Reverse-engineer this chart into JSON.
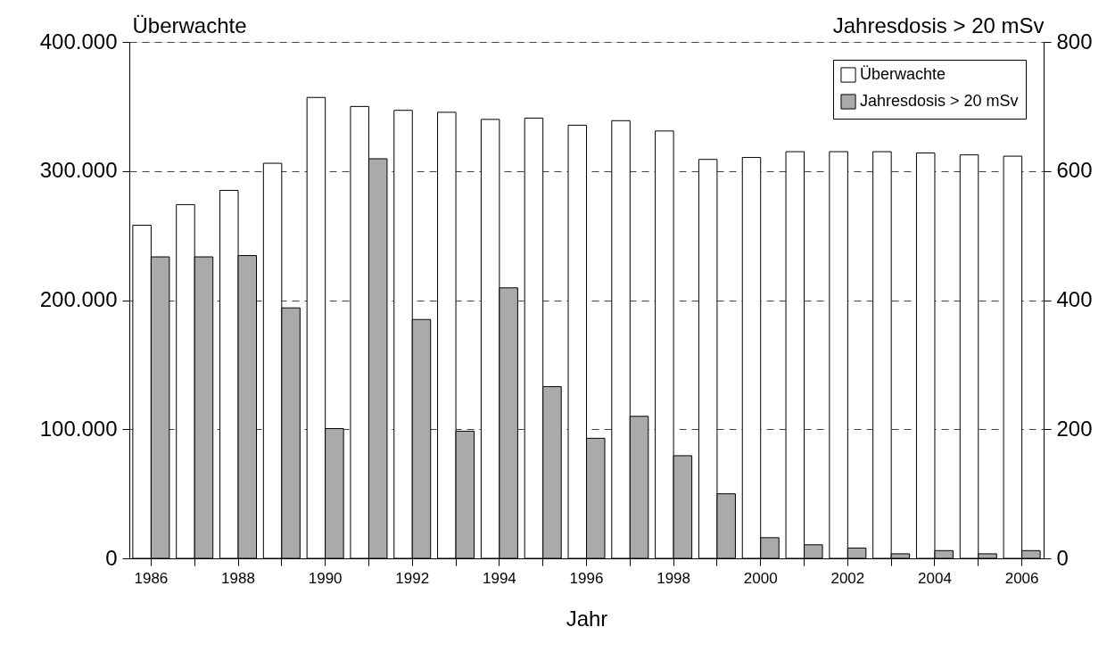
{
  "chart_data": {
    "type": "bar",
    "categories": [
      "1986",
      null,
      "1988",
      null,
      "1990",
      null,
      "1992",
      null,
      "1994",
      null,
      "1996",
      null,
      "1998",
      null,
      "2000",
      null,
      "2002",
      null,
      "2004",
      null,
      "2006"
    ],
    "series": [
      {
        "name": "Überwachte",
        "color": "#ffffff",
        "values": [
          258000,
          274000,
          285000,
          306000,
          357000,
          350000,
          347000,
          345500,
          340000,
          341000,
          335500,
          339000,
          331000,
          309000,
          310500,
          315000,
          315000,
          315000,
          314000,
          312500,
          311500
        ]
      },
      {
        "name": "Jahresdosis > 20 mSv",
        "color": "#aaaaaa",
        "axis": "y2",
        "values": [
          467,
          467,
          469,
          388,
          201,
          619,
          370,
          197,
          419,
          266,
          186,
          220,
          159,
          100,
          32,
          21,
          16,
          7,
          12,
          7,
          12
        ]
      }
    ],
    "xlabel": "Jahr",
    "ylabel": "Überwachte",
    "y2label": "Jahresdosis > 20 mSv",
    "ylim": [
      0,
      400000
    ],
    "yticks": [
      0,
      {
        "value": 100000,
        "label": "100.000"
      },
      {
        "value": 200000,
        "label": "200.000"
      },
      {
        "value": 300000,
        "label": "300.000"
      },
      {
        "value": 400000,
        "label": "400.000"
      }
    ],
    "y2lim": [
      0,
      800
    ],
    "y2ticks": [
      0,
      200,
      400,
      600,
      800
    ],
    "grid": "y",
    "legend": "top right"
  }
}
